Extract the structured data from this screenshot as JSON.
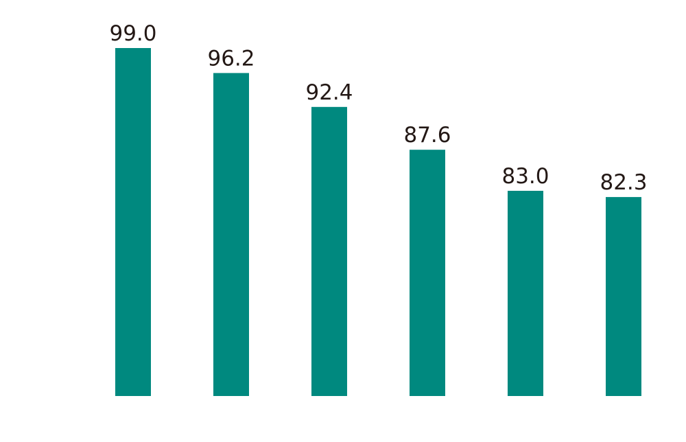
{
  "chart_data": {
    "type": "bar",
    "categories": [
      null,
      null,
      null,
      null,
      null,
      null
    ],
    "values": [
      99.0,
      96.2,
      92.4,
      87.6,
      83.0,
      82.3
    ],
    "value_labels": [
      "99.0",
      "96.2",
      "92.4",
      "87.6",
      "83.0",
      "82.3"
    ],
    "color": "#00897f",
    "ylim": [
      60,
      100
    ]
  }
}
